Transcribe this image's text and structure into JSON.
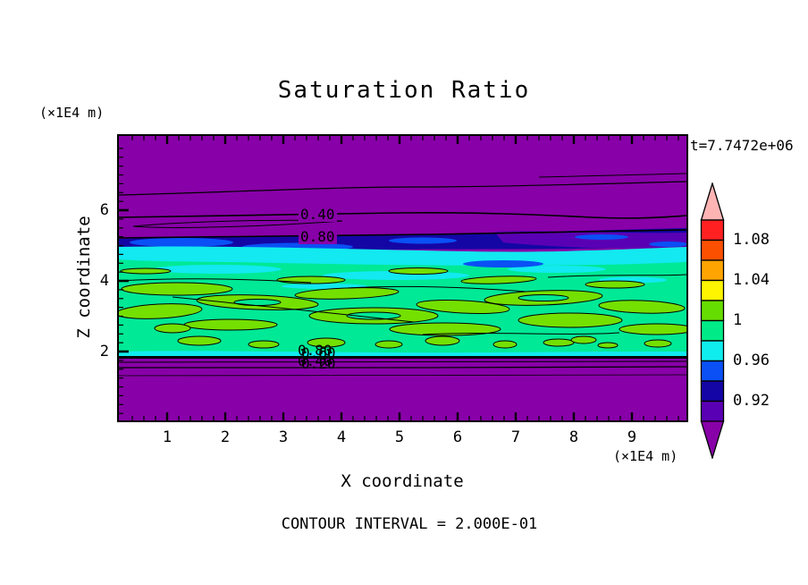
{
  "title": "Saturation Ratio",
  "time_label": "t=7.7472e+06",
  "y_axis": {
    "unit": "(×1E4 m)",
    "label": "Z coordinate",
    "ticks": [
      "6",
      "4",
      "2"
    ]
  },
  "x_axis": {
    "unit": "(×1E4 m)",
    "label": "X coordinate",
    "ticks": [
      "1",
      "2",
      "3",
      "4",
      "5",
      "6",
      "7",
      "8",
      "9"
    ]
  },
  "footer": {
    "contour_interval_label": "CONTOUR INTERVAL = 2.000E-01"
  },
  "contour_labels": {
    "upper_040": "0.40",
    "upper_080": "0.80",
    "cluster_row1_a": "0.80",
    "cluster_row1_b": "0.60",
    "cluster_row2_a": "0.40",
    "cluster_row2_b": "0.20"
  },
  "colorbar": {
    "labels": [
      "1.08",
      "1.04",
      "1",
      "0.96",
      "0.92"
    ],
    "segment_colors_top_to_bottom": [
      "#FF2121",
      "#FB5000",
      "#FFA400",
      "#FFF500",
      "#66DD00",
      "#00EB87",
      "#10EDEE",
      "#0A50F5",
      "#1406A5",
      "#5A00B4"
    ],
    "arrow_top_color": "#FFB4B4",
    "arrow_bottom_color": "#8800A8"
  },
  "colors": {
    "purple": "#8800A8",
    "navy": "#1406A5",
    "violet": "#5A00B4",
    "blue": "#0A50F5",
    "cyan": "#12E9F0",
    "springgreen": "#00E996",
    "chartreuse": "#74E000",
    "black": "#000000"
  },
  "chart_data": {
    "type": "heatmap",
    "title": "Saturation Ratio",
    "xlabel": "X coordinate (×1E4 m)",
    "ylabel": "Z coordinate (×1E4 m)",
    "x_range": [
      0,
      10
    ],
    "z_range": [
      0,
      8
    ],
    "time_stamp": "t=7.7472e+06",
    "line_contour_interval": 0.2,
    "labeled_line_contours": [
      0.2,
      0.4,
      0.6,
      0.8
    ],
    "colorbar_levels": {
      "min": 0.9,
      "max": 1.1,
      "step": 0.02,
      "labeled": [
        0.92,
        0.96,
        1.0,
        1.04,
        1.08
      ]
    },
    "bands_by_height": [
      {
        "z_from": 5.9,
        "z_to": 8.1,
        "saturation": "< 0.4",
        "appearance": "solid purple, sparse near-horizontal line contours"
      },
      {
        "z_from": 5.3,
        "z_to": 5.9,
        "saturation": "0.4 - 0.8",
        "appearance": "purple with labeled contours 0.40 and 0.80"
      },
      {
        "z_from": 4.9,
        "z_to": 5.3,
        "saturation": "0.90 - 0.94",
        "appearance": "navy/dark-blue band with dark-violet patches on right"
      },
      {
        "z_from": 4.5,
        "z_to": 4.9,
        "saturation": "0.94 - 0.98",
        "appearance": "cyan streaked band with bright blue lenses"
      },
      {
        "z_from": 2.0,
        "z_to": 4.5,
        "saturation": "0.98 - 1.02",
        "appearance": "spring-green field with many elongated chartreuse patches outlined by thin contours"
      },
      {
        "z_from": 1.85,
        "z_to": 2.0,
        "saturation": "0.8 down to 0.2",
        "appearance": "tight contour cluster, overlapping labels 0.80/0.60/0.40/0.20"
      },
      {
        "z_from": 0.0,
        "z_to": 1.85,
        "saturation": "< 0.2",
        "appearance": "solid purple with thin horizontal contours near top"
      }
    ]
  }
}
